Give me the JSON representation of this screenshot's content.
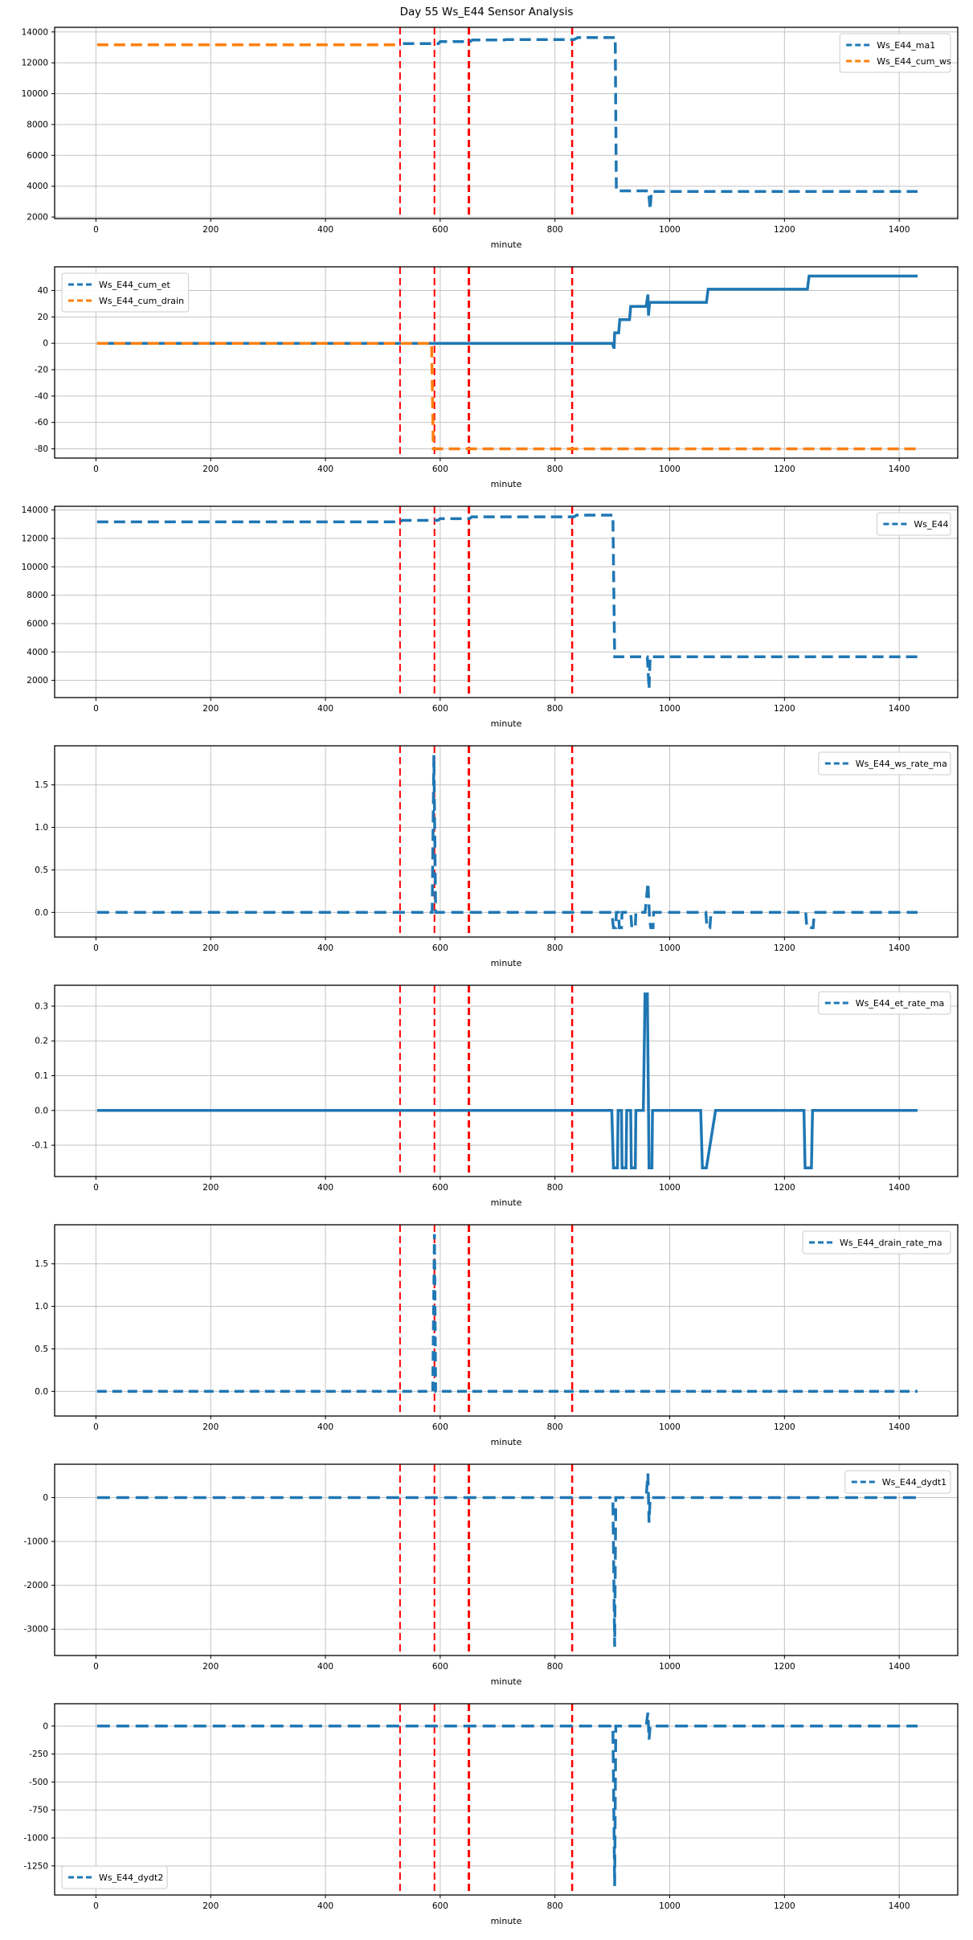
{
  "figure": {
    "title": "Day 55 Ws_E44 Sensor Analysis",
    "xlabel": "minute",
    "colors": {
      "blue": "#1f77b4",
      "orange": "#ff7f0e",
      "vline_red": "#ff0000",
      "grid": "#c3c3c3",
      "frame": "#000000",
      "legend_border": "#cccccc"
    }
  },
  "chart_data": [
    {
      "type": "line",
      "xlabel": "minute",
      "xlim": [
        -72,
        1502
      ],
      "xticks": [
        0,
        200,
        400,
        600,
        800,
        1000,
        1200,
        1400
      ],
      "ylim": [
        1900,
        14300
      ],
      "yticks": [
        2000,
        4000,
        6000,
        8000,
        10000,
        12000,
        14000
      ],
      "ytick_labels": [
        "2000",
        "4000",
        "6000",
        "8000",
        "10000",
        "12000",
        "14000"
      ],
      "grid": true,
      "vlines": [
        {
          "x": 530,
          "w": 2
        },
        {
          "x": 590,
          "w": 2
        },
        {
          "x": 650,
          "w": 3
        },
        {
          "x": 830,
          "w": 2.5
        }
      ],
      "legend": {
        "loc": "top-right"
      },
      "series": [
        {
          "name": "Ws_E44_ma1",
          "color": "#1f77b4",
          "dash": "14 7",
          "width": 3.5,
          "points": [
            [
              535,
              13250
            ],
            [
              597,
              13250
            ],
            [
              600,
              13370
            ],
            [
              652,
              13370
            ],
            [
              656,
              13480
            ],
            [
              712,
              13480
            ],
            [
              715,
              13505
            ],
            [
              833,
              13505
            ],
            [
              840,
              13635
            ],
            [
              902,
              13635
            ],
            [
              905,
              13660
            ],
            [
              907,
              3700
            ],
            [
              963,
              3700
            ],
            [
              966,
              2500
            ],
            [
              968,
              3660
            ],
            [
              1432,
              3660
            ]
          ]
        },
        {
          "name": "Ws_E44_cum_ws",
          "color": "#ff7f0e",
          "dash": "14 7",
          "width": 3.5,
          "points": [
            [
              2,
              13170
            ],
            [
              530,
              13170
            ]
          ]
        }
      ]
    },
    {
      "type": "line",
      "xlabel": "minute",
      "xlim": [
        -72,
        1502
      ],
      "xticks": [
        0,
        200,
        400,
        600,
        800,
        1000,
        1200,
        1400
      ],
      "ylim": [
        -87,
        58
      ],
      "yticks": [
        -80,
        -60,
        -40,
        -20,
        0,
        20,
        40
      ],
      "ytick_labels": [
        "-80",
        "-60",
        "-40",
        "-20",
        "0",
        "20",
        "40"
      ],
      "grid": true,
      "vlines": [
        {
          "x": 530,
          "w": 2
        },
        {
          "x": 590,
          "w": 2
        },
        {
          "x": 650,
          "w": 3
        },
        {
          "x": 830,
          "w": 2.5
        }
      ],
      "legend": {
        "loc": "top-left"
      },
      "series": [
        {
          "name": "Ws_E44_cum_et",
          "color": "#1f77b4",
          "dash": "",
          "width": 3.5,
          "points": [
            [
              2,
              0
            ],
            [
              900,
              0
            ],
            [
              903,
              -4
            ],
            [
              904,
              8
            ],
            [
              911,
              8
            ],
            [
              913,
              18
            ],
            [
              930,
              18
            ],
            [
              932,
              28
            ],
            [
              959,
              28
            ],
            [
              962,
              37
            ],
            [
              963,
              21
            ],
            [
              965,
              31
            ],
            [
              1064,
              31
            ],
            [
              1067,
              41
            ],
            [
              1240,
              41
            ],
            [
              1243,
              51
            ],
            [
              1432,
              51
            ]
          ]
        },
        {
          "name": "Ws_E44_cum_drain",
          "color": "#ff7f0e",
          "dash": "14 7",
          "width": 3.5,
          "points": [
            [
              2,
              0
            ],
            [
              585,
              0
            ],
            [
              588,
              -80
            ],
            [
              1432,
              -80
            ]
          ]
        }
      ]
    },
    {
      "type": "line",
      "xlabel": "minute",
      "xlim": [
        -72,
        1502
      ],
      "xticks": [
        0,
        200,
        400,
        600,
        800,
        1000,
        1200,
        1400
      ],
      "ylim": [
        790,
        14260
      ],
      "yticks": [
        2000,
        4000,
        6000,
        8000,
        10000,
        12000,
        14000
      ],
      "ytick_labels": [
        "2000",
        "4000",
        "6000",
        "8000",
        "10000",
        "12000",
        "14000"
      ],
      "grid": true,
      "vlines": [
        {
          "x": 530,
          "w": 2
        },
        {
          "x": 590,
          "w": 2
        },
        {
          "x": 650,
          "w": 3
        },
        {
          "x": 830,
          "w": 2.5
        }
      ],
      "legend": {
        "loc": "top-right"
      },
      "series": [
        {
          "name": "Ws_E44",
          "color": "#1f77b4",
          "dash": "14 7",
          "width": 3.5,
          "points": [
            [
              2,
              13160
            ],
            [
              530,
              13160
            ],
            [
              534,
              13270
            ],
            [
              596,
              13270
            ],
            [
              600,
              13390
            ],
            [
              651,
              13390
            ],
            [
              655,
              13520
            ],
            [
              833,
              13520
            ],
            [
              838,
              13640
            ],
            [
              901,
              13640
            ],
            [
              904,
              3660
            ],
            [
              961,
              3660
            ],
            [
              964,
              1400
            ],
            [
              966,
              3660
            ],
            [
              1432,
              3660
            ]
          ]
        }
      ]
    },
    {
      "type": "line",
      "xlabel": "minute",
      "xlim": [
        -72,
        1502
      ],
      "xticks": [
        0,
        200,
        400,
        600,
        800,
        1000,
        1200,
        1400
      ],
      "ylim": [
        -0.29,
        1.96
      ],
      "yticks": [
        0.0,
        0.5,
        1.0,
        1.5
      ],
      "ytick_labels": [
        "0.0",
        "0.5",
        "1.0",
        "1.5"
      ],
      "grid": true,
      "vlines": [
        {
          "x": 530,
          "w": 2
        },
        {
          "x": 590,
          "w": 2
        },
        {
          "x": 650,
          "w": 3
        },
        {
          "x": 830,
          "w": 2.5
        }
      ],
      "legend": {
        "loc": "top-right"
      },
      "series": [
        {
          "name": "Ws_E44_ws_rate_ma",
          "color": "#1f77b4",
          "dash": "15 8",
          "width": 3.5,
          "points": [
            [
              2,
              0
            ],
            [
              586,
              0
            ],
            [
              589,
              1.85
            ],
            [
              592,
              0
            ],
            [
              899,
              0
            ],
            [
              902,
              -0.18
            ],
            [
              906,
              -0.18
            ],
            [
              907,
              0
            ],
            [
              911,
              0
            ],
            [
              912,
              -0.18
            ],
            [
              916,
              -0.18
            ],
            [
              917,
              0
            ],
            [
              932,
              0
            ],
            [
              934,
              -0.18
            ],
            [
              940,
              -0.18
            ],
            [
              941,
              0
            ],
            [
              957,
              0
            ],
            [
              959,
              0.12
            ],
            [
              962,
              0.35
            ],
            [
              965,
              -0.08
            ],
            [
              967,
              -0.18
            ],
            [
              971,
              -0.18
            ],
            [
              972,
              0
            ],
            [
              1063,
              0
            ],
            [
              1065,
              -0.18
            ],
            [
              1070,
              -0.18
            ],
            [
              1072,
              0
            ],
            [
              1237,
              0
            ],
            [
              1239,
              -0.18
            ],
            [
              1250,
              -0.18
            ],
            [
              1252,
              0
            ],
            [
              1432,
              0
            ]
          ]
        }
      ]
    },
    {
      "type": "line",
      "xlabel": "minute",
      "xlim": [
        -72,
        1502
      ],
      "xticks": [
        0,
        200,
        400,
        600,
        800,
        1000,
        1200,
        1400
      ],
      "ylim": [
        -0.19,
        0.36
      ],
      "yticks": [
        -0.1,
        0.0,
        0.1,
        0.2,
        0.3
      ],
      "ytick_labels": [
        "-0.1",
        "0.0",
        "0.1",
        "0.2",
        "0.3"
      ],
      "grid": true,
      "vlines": [
        {
          "x": 530,
          "w": 2
        },
        {
          "x": 590,
          "w": 2
        },
        {
          "x": 650,
          "w": 3
        },
        {
          "x": 830,
          "w": 2.5
        }
      ],
      "legend": {
        "loc": "top-right"
      },
      "series": [
        {
          "name": "Ws_E44_et_rate_ma",
          "color": "#1f77b4",
          "dash": "",
          "width": 3.5,
          "points": [
            [
              2,
              0
            ],
            [
              899,
              0
            ],
            [
              902,
              -0.165
            ],
            [
              909,
              -0.165
            ],
            [
              910,
              0
            ],
            [
              916,
              0
            ],
            [
              917,
              -0.165
            ],
            [
              924,
              -0.165
            ],
            [
              925,
              0
            ],
            [
              932,
              0
            ],
            [
              933,
              -0.165
            ],
            [
              940,
              -0.165
            ],
            [
              941,
              0
            ],
            [
              954,
              0
            ],
            [
              957,
              0.335
            ],
            [
              961,
              0.335
            ],
            [
              964,
              -0.165
            ],
            [
              969,
              -0.165
            ],
            [
              970,
              0
            ],
            [
              1054,
              0
            ],
            [
              1057,
              -0.165
            ],
            [
              1064,
              -0.165
            ],
            [
              1080,
              0
            ],
            [
              1234,
              0
            ],
            [
              1236,
              -0.165
            ],
            [
              1247,
              -0.165
            ],
            [
              1249,
              0
            ],
            [
              1432,
              0
            ]
          ]
        }
      ]
    },
    {
      "type": "line",
      "xlabel": "minute",
      "xlim": [
        -72,
        1502
      ],
      "xticks": [
        0,
        200,
        400,
        600,
        800,
        1000,
        1200,
        1400
      ],
      "ylim": [
        -0.29,
        1.96
      ],
      "yticks": [
        0.0,
        0.5,
        1.0,
        1.5
      ],
      "ytick_labels": [
        "0.0",
        "0.5",
        "1.0",
        "1.5"
      ],
      "grid": true,
      "vlines": [
        {
          "x": 530,
          "w": 2
        },
        {
          "x": 590,
          "w": 2
        },
        {
          "x": 650,
          "w": 3
        },
        {
          "x": 830,
          "w": 2.5
        }
      ],
      "legend": {
        "loc": "top-right"
      },
      "series": [
        {
          "name": "Ws_E44_drain_rate_ma",
          "color": "#1f77b4",
          "dash": "12 7",
          "width": 3.5,
          "points": [
            [
              2,
              0
            ],
            [
              587,
              0
            ],
            [
              590,
              1.85
            ],
            [
              592,
              0
            ],
            [
              1432,
              0
            ]
          ]
        }
      ]
    },
    {
      "type": "line",
      "xlabel": "minute",
      "xlim": [
        -72,
        1502
      ],
      "xticks": [
        0,
        200,
        400,
        600,
        800,
        1000,
        1200,
        1400
      ],
      "ylim": [
        -3600,
        760
      ],
      "yticks": [
        0,
        -1000,
        -2000,
        -3000
      ],
      "ytick_labels": [
        "0",
        "-1000",
        "-2000",
        "-3000"
      ],
      "grid": true,
      "vlines": [
        {
          "x": 530,
          "w": 2
        },
        {
          "x": 590,
          "w": 2
        },
        {
          "x": 650,
          "w": 3
        },
        {
          "x": 830,
          "w": 2.5
        }
      ],
      "legend": {
        "loc": "top-right"
      },
      "series": [
        {
          "name": "Ws_E44_dydt1",
          "color": "#1f77b4",
          "dash": "16 8",
          "width": 3.5,
          "points": [
            [
              2,
              0
            ],
            [
              901,
              0
            ],
            [
              904,
              -3400
            ],
            [
              906,
              0
            ],
            [
              959,
              0
            ],
            [
              962,
              550
            ],
            [
              964,
              -570
            ],
            [
              966,
              0
            ],
            [
              1432,
              0
            ]
          ]
        }
      ]
    },
    {
      "type": "line",
      "xlabel": "minute",
      "xlim": [
        -72,
        1502
      ],
      "xticks": [
        0,
        200,
        400,
        600,
        800,
        1000,
        1200,
        1400
      ],
      "ylim": [
        -1510,
        200
      ],
      "yticks": [
        0,
        -250,
        -500,
        -750,
        -1000,
        -1250
      ],
      "ytick_labels": [
        "0",
        "-250",
        "-500",
        "-750",
        "-1000",
        "-1250"
      ],
      "grid": true,
      "vlines": [
        {
          "x": 530,
          "w": 2
        },
        {
          "x": 590,
          "w": 2
        },
        {
          "x": 650,
          "w": 3
        },
        {
          "x": 830,
          "w": 2.5
        }
      ],
      "legend": {
        "loc": "bottom-left"
      },
      "series": [
        {
          "name": "Ws_E44_dydt2",
          "color": "#1f77b4",
          "dash": "16 8",
          "width": 3.5,
          "points": [
            [
              2,
              0
            ],
            [
              901,
              0
            ],
            [
              904,
              -1430
            ],
            [
              906,
              0
            ],
            [
              959,
              0
            ],
            [
              962,
              120
            ],
            [
              964,
              -120
            ],
            [
              966,
              0
            ],
            [
              1432,
              0
            ]
          ]
        }
      ]
    }
  ]
}
